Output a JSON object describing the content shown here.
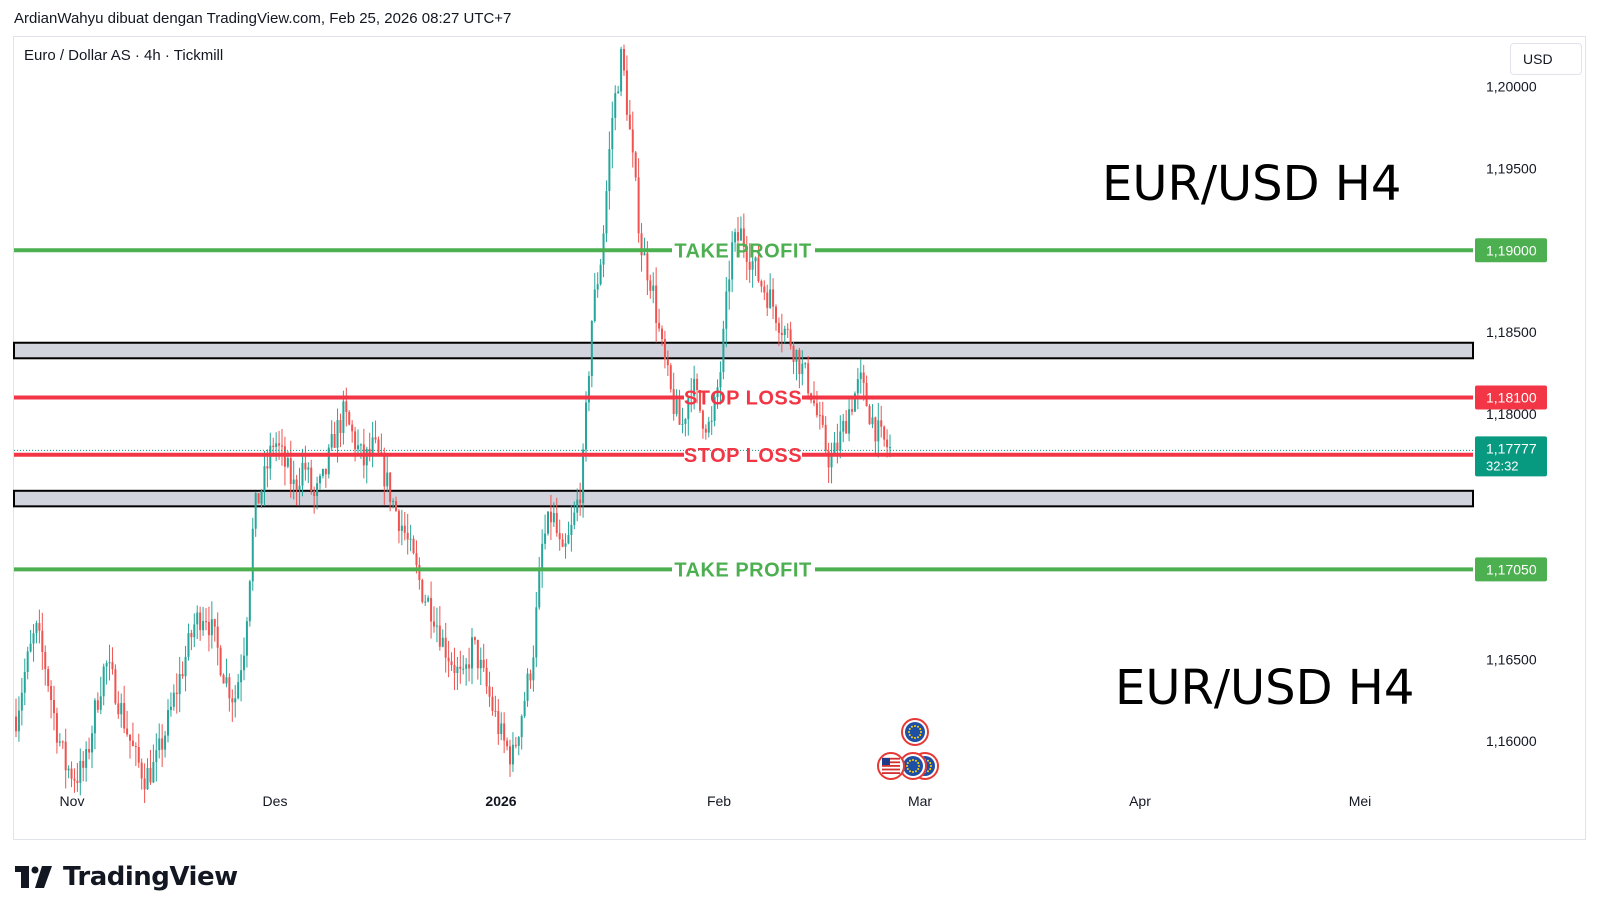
{
  "attribution": "ArdianWahyu dibuat dengan TradingView.com, Feb 25, 2026 08:27 UTC+7",
  "symbol_title": "Euro / Dollar AS · 4h · Tickmill",
  "currency": "USD",
  "overlay_labels": [
    "EUR/USD H4",
    "EUR/USD H4"
  ],
  "brand": "TradingView",
  "colors": {
    "take_profit": "#4caf50",
    "stop_loss": "#f23645",
    "up_candle": "#26a69a",
    "down_candle": "#ef5350",
    "zone_fill": "#d1d4dc",
    "current_price_bg": "#089981"
  },
  "chart_data": {
    "type": "candlestick",
    "timeframe": "4h",
    "y_range": [
      1.1575,
      1.2031
    ],
    "y_ticks": [
      {
        "value": 1.2,
        "label": "1,20000"
      },
      {
        "value": 1.195,
        "label": "1,19500"
      },
      {
        "value": 1.185,
        "label": "1,18500"
      },
      {
        "value": 1.18,
        "label": "1,18000"
      },
      {
        "value": 1.165,
        "label": "1,16500"
      },
      {
        "value": 1.16,
        "label": "1,16000"
      }
    ],
    "x_ticks": [
      {
        "label": "Nov",
        "bold": false
      },
      {
        "label": "Des",
        "bold": false
      },
      {
        "label": "2026",
        "bold": true
      },
      {
        "label": "Feb",
        "bold": false
      },
      {
        "label": "Mar",
        "bold": false
      },
      {
        "label": "Apr",
        "bold": false
      },
      {
        "label": "Mei",
        "bold": false
      }
    ],
    "price_path": [
      1.1615,
      1.1645,
      1.1668,
      1.1645,
      1.161,
      1.1585,
      1.1578,
      1.1585,
      1.162,
      1.1648,
      1.1632,
      1.161,
      1.159,
      1.1578,
      1.1585,
      1.1605,
      1.1628,
      1.165,
      1.1672,
      1.168,
      1.1662,
      1.164,
      1.1625,
      1.166,
      1.174,
      1.176,
      1.1785,
      1.177,
      1.1755,
      1.177,
      1.1748,
      1.176,
      1.1785,
      1.18,
      1.1785,
      1.177,
      1.178,
      1.1765,
      1.1745,
      1.173,
      1.171,
      1.169,
      1.168,
      1.166,
      1.1648,
      1.1635,
      1.166,
      1.164,
      1.162,
      1.16,
      1.159,
      1.162,
      1.165,
      1.172,
      1.174,
      1.171,
      1.173,
      1.176,
      1.186,
      1.19,
      1.198,
      1.202,
      1.196,
      1.19,
      1.188,
      1.184,
      1.181,
      1.179,
      1.182,
      1.18,
      1.179,
      1.183,
      1.19,
      1.191,
      1.1895,
      1.188,
      1.187,
      1.1855,
      1.1845,
      1.183,
      1.1815,
      1.179,
      1.177,
      1.1785,
      1.1805,
      1.182,
      1.18,
      1.1785,
      1.1778
    ],
    "horizontal_lines": [
      {
        "name": "take-profit-upper",
        "label": "TAKE PROFIT",
        "value": 1.19,
        "price_label": "1,19000",
        "kind": "take_profit"
      },
      {
        "name": "stop-loss-upper",
        "label": "STOP LOSS",
        "value": 1.181,
        "price_label": "1,18100",
        "kind": "stop_loss"
      },
      {
        "name": "stop-loss-lower",
        "label": "STOP LOSS",
        "value": 1.1775,
        "price_label": "1,17750",
        "kind": "stop_loss"
      },
      {
        "name": "take-profit-lower",
        "label": "TAKE PROFIT",
        "value": 1.1705,
        "price_label": "1,17050",
        "kind": "take_profit"
      }
    ],
    "zones": [
      {
        "name": "resistance-zone",
        "from": 1.1834,
        "to": 1.18435
      },
      {
        "name": "support-zone",
        "from": 1.17435,
        "to": 1.1753
      }
    ],
    "current_price": {
      "value": 1.17777,
      "label": "1,17777",
      "countdown": "32:32"
    }
  }
}
